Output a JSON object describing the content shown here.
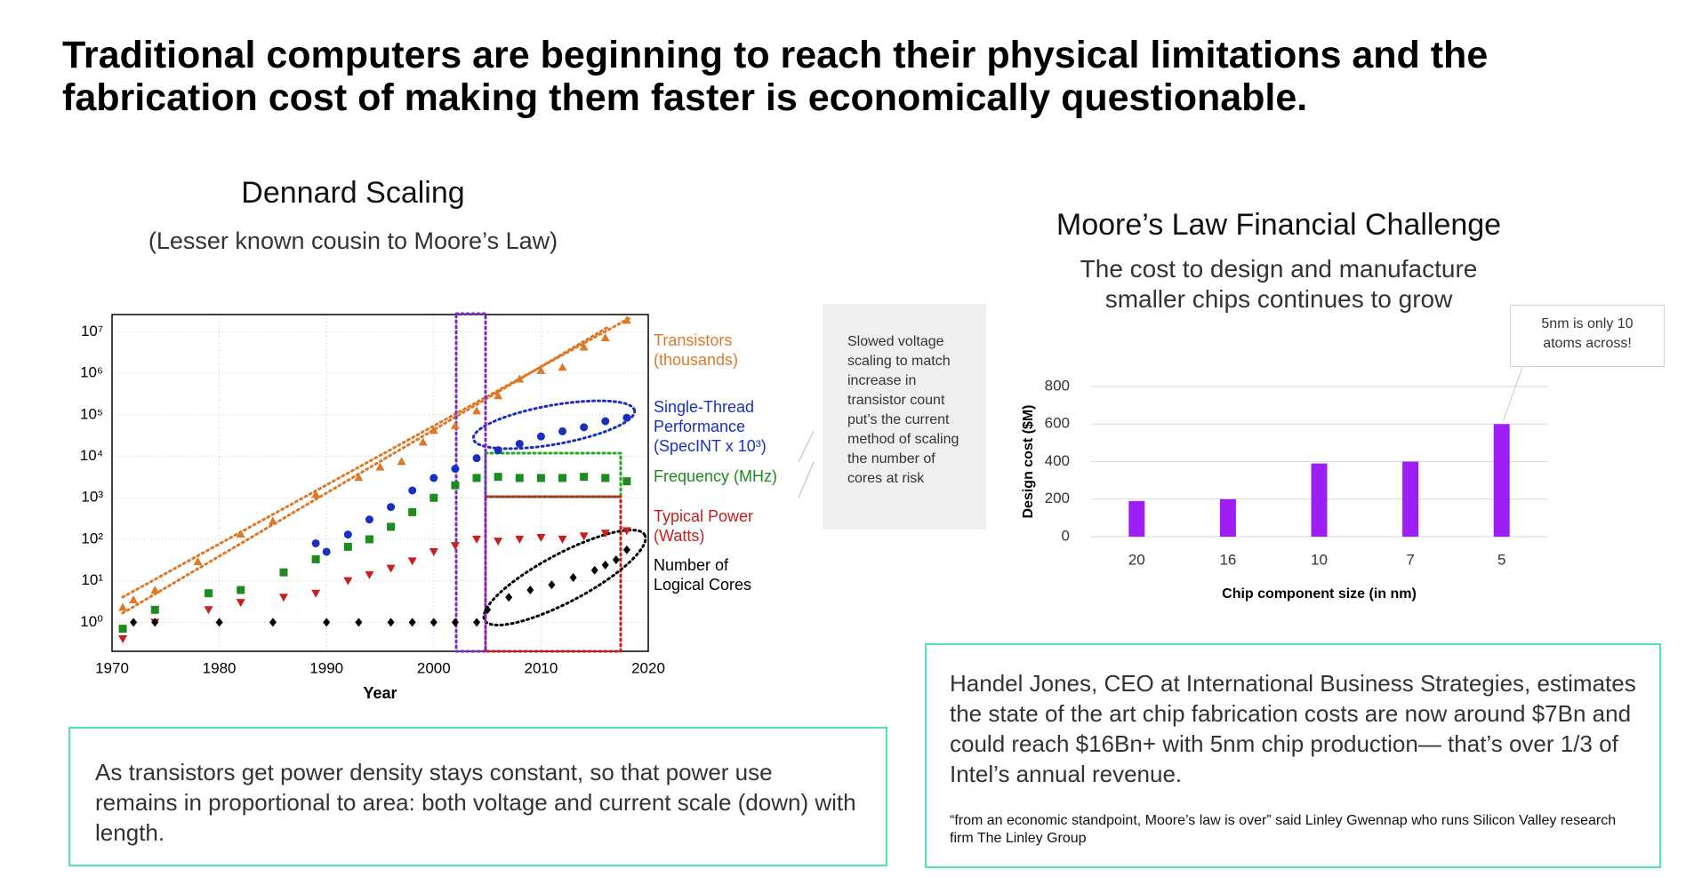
{
  "title": "Traditional computers are beginning to reach their physical limitations and the fabrication cost of making them faster is economically questionable.",
  "callout": "Slowed voltage scaling to match increase in transistor count put’s the current method of scaling the number of cores at risk",
  "left_note": "As transistors get power density stays constant, so that power use remains in proportional to area: both voltage and current scale (down) with length.",
  "right_note": {
    "text": "Handel Jones, CEO at International Business Strategies, estimates the state of the art chip fabrication costs are now around $7Bn and could reach $16Bn+ with 5nm chip production— that’s over 1/3 of Intel’s annual revenue.",
    "quote": "“from an economic standpoint, Moore’s law is over” said Linley Gwennap who runs Silicon Valley research firm The Linley Group"
  },
  "chart_data": [
    {
      "type": "scatter",
      "title": "Dennard Scaling",
      "subtitle": "(Lesser known cousin to Moore’s Law)",
      "x_label": "Year",
      "xlim": [
        1970,
        2020
      ],
      "xticks": [
        1970,
        1980,
        1990,
        2000,
        2010,
        2020
      ],
      "log_scale": true,
      "ylim": [
        0.2,
        26000000
      ],
      "yticks": [
        {
          "value": 1,
          "label": "10⁰"
        },
        {
          "value": 10,
          "label": "10¹"
        },
        {
          "value": 100,
          "label": "10²"
        },
        {
          "value": 1000,
          "label": "10³"
        },
        {
          "value": 10000,
          "label": "10⁴"
        },
        {
          "value": 100000,
          "label": "10⁵"
        },
        {
          "value": 1000000,
          "label": "10⁶"
        },
        {
          "value": 10000000,
          "label": "10⁷"
        }
      ],
      "grid": true,
      "series": [
        {
          "name": "Transistors (thousands)",
          "color": "#dc7a2a",
          "marker": "triangle",
          "x": [
            1971,
            1972,
            1974,
            1978,
            1982,
            1985,
            1989,
            1993,
            1995,
            1997,
            1999,
            2000,
            2002,
            2004,
            2006,
            2008,
            2010,
            2012,
            2014,
            2016,
            2018
          ],
          "values": [
            2.3,
            3.5,
            6,
            29,
            134,
            275,
            1200,
            3100,
            5500,
            7500,
            22000,
            42000,
            55000,
            125000,
            290000,
            730000,
            1170000,
            1400000,
            4300000,
            7200000,
            19000000
          ]
        },
        {
          "name": "Single-Thread Performance (SpecINT x 10³)",
          "color": "#1a2fbf",
          "marker": "circle",
          "x": [
            1989,
            1990,
            1992,
            1994,
            1996,
            1998,
            2000,
            2002,
            2004,
            2006,
            2008,
            2010,
            2012,
            2014,
            2016,
            2018
          ],
          "values": [
            80,
            50,
            130,
            300,
            600,
            1500,
            3000,
            5000,
            9000,
            14000,
            20000,
            30000,
            40000,
            50000,
            70000,
            85000
          ]
        },
        {
          "name": "Frequency (MHz)",
          "color": "#1f8a1f",
          "marker": "square",
          "x": [
            1971,
            1974,
            1979,
            1982,
            1986,
            1989,
            1992,
            1994,
            1996,
            1998,
            2000,
            2002,
            2004,
            2006,
            2008,
            2010,
            2012,
            2014,
            2016,
            2018
          ],
          "values": [
            0.7,
            2,
            5,
            6,
            16,
            33,
            66,
            100,
            200,
            450,
            1000,
            2000,
            3000,
            3200,
            3000,
            3000,
            3000,
            3200,
            3000,
            2500
          ]
        },
        {
          "name": "Typical Power (Watts)",
          "color": "#c81e1e",
          "marker": "triangle-down",
          "x": [
            1971,
            1974,
            1979,
            1982,
            1986,
            1989,
            1992,
            1994,
            1996,
            1998,
            2000,
            2002,
            2004,
            2006,
            2008,
            2010,
            2012,
            2014,
            2016,
            2018
          ],
          "values": [
            0.4,
            1,
            2,
            3,
            4,
            5,
            10,
            14,
            20,
            30,
            50,
            70,
            100,
            90,
            100,
            110,
            100,
            120,
            140,
            160
          ]
        },
        {
          "name": "Number of Logical Cores",
          "color": "#000000",
          "marker": "diamond",
          "x": [
            1972,
            1974,
            1980,
            1985,
            1990,
            1993,
            1996,
            1998,
            2000,
            2002,
            2004,
            2005,
            2007,
            2009,
            2011,
            2013,
            2015,
            2016,
            2017,
            2018
          ],
          "values": [
            1,
            1,
            1,
            1,
            1,
            1,
            1,
            1,
            1,
            1,
            1,
            2,
            4,
            6,
            8,
            12,
            18,
            24,
            32,
            56
          ]
        }
      ]
    },
    {
      "type": "bar",
      "title": "Moore’s Law Financial Challenge",
      "subtitle": "The cost to design and manufacture smaller chips continues to grow",
      "x_label": "Chip component size (in nm)",
      "y_label": "Design cost ($M)",
      "categories": [
        "20",
        "16",
        "10",
        "7",
        "5"
      ],
      "values": [
        190,
        200,
        390,
        400,
        600
      ],
      "color": "#9d1ff5",
      "ylim": [
        0,
        800
      ],
      "yticks": [
        0,
        200,
        400,
        600,
        800
      ],
      "grid": true,
      "annotation": "5nm is only 10 atoms across!"
    }
  ]
}
